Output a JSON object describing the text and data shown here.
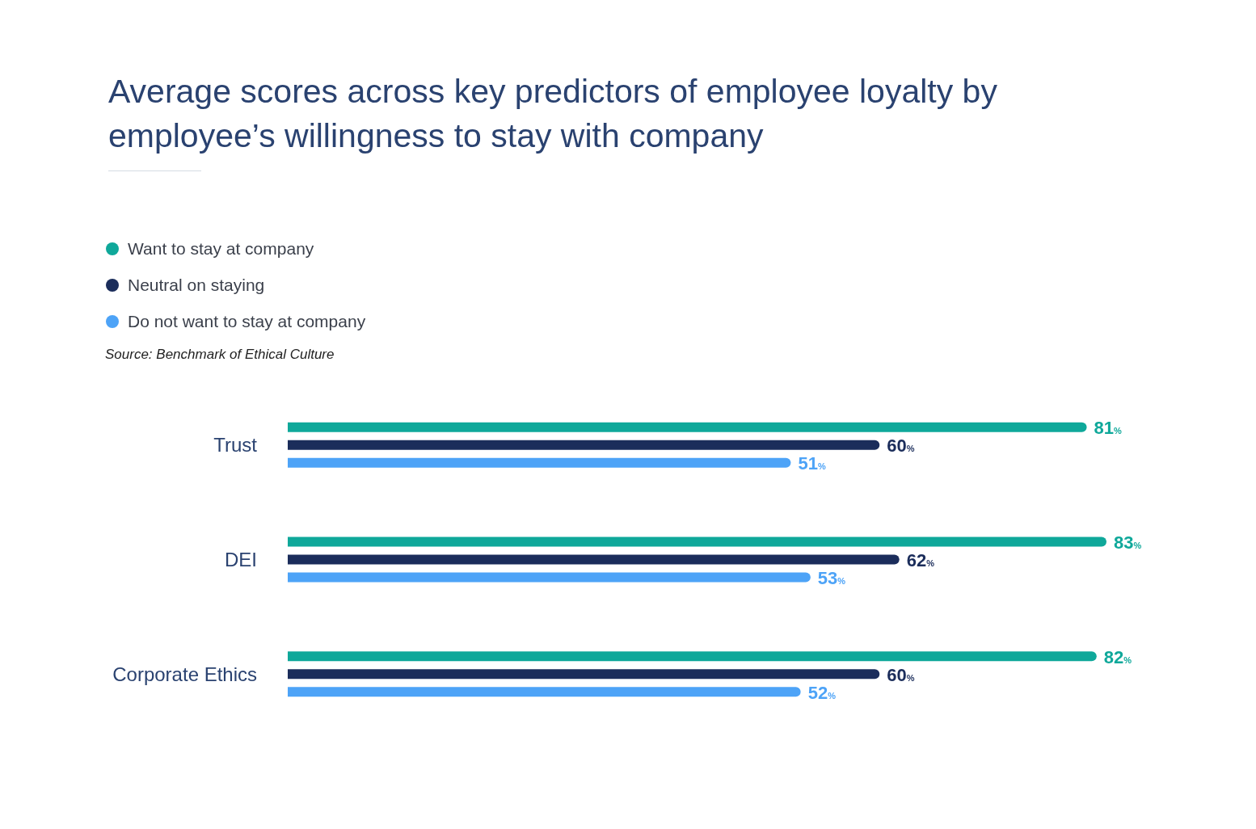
{
  "chart_data": {
    "type": "bar",
    "orientation": "horizontal",
    "title": "Average scores across key predictors of employee loyalty by employee’s willingness to stay with company",
    "categories": [
      "Trust",
      "DEI",
      "Corporate Ethics"
    ],
    "series": [
      {
        "name": "Want to stay at company",
        "color": "#0fa89a",
        "values": [
          81,
          83,
          82
        ],
        "value_labels": [
          "81%",
          "83%",
          "82%"
        ]
      },
      {
        "name": "Neutral on staying",
        "color": "#1b2d5b",
        "values": [
          60,
          62,
          60
        ],
        "value_labels": [
          "60%",
          "62%",
          "60%"
        ]
      },
      {
        "name": "Do not want to stay at company",
        "color": "#4da3f7",
        "values": [
          51,
          53,
          52
        ],
        "value_labels": [
          "51%",
          "53%",
          "52%"
        ]
      }
    ],
    "legend": "top left",
    "annotations": [
      "Source: Benchmark of Ethical Culture"
    ]
  }
}
